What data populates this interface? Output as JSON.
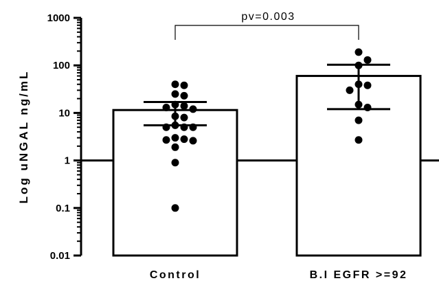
{
  "chart_data": {
    "type": "bar",
    "scale": "log",
    "ylabel": "Log uNGAL ng/mL",
    "ylim": [
      0.01,
      1000
    ],
    "yticks": [
      {
        "value": 1000,
        "label": "1000"
      },
      {
        "value": 100,
        "label": "100"
      },
      {
        "value": 10,
        "label": "10"
      },
      {
        "value": 1,
        "label": "1"
      },
      {
        "value": 0.1,
        "label": "0.1"
      },
      {
        "value": 0.01,
        "label": "0.01"
      }
    ],
    "reference_line": 1,
    "categories": [
      "Control",
      "B.I EGFR >=92"
    ],
    "bars": [
      {
        "category": "Control",
        "mean": 11.5,
        "error_upper": 17,
        "error_lower": 5.5,
        "points": [
          40,
          38,
          25,
          23,
          15,
          14,
          13,
          12,
          8.5,
          8,
          5.5,
          5,
          5,
          5,
          3,
          2.8,
          2.7,
          2.6,
          1.9,
          0.9,
          0.1
        ]
      },
      {
        "category": "B.I EGFR >=92",
        "mean": 60,
        "error_upper": 103,
        "error_lower": 12,
        "points": [
          190,
          130,
          100,
          40,
          38,
          30,
          15,
          13,
          7,
          2.7
        ]
      }
    ],
    "annotation": {
      "text": "pv=0.003"
    }
  }
}
